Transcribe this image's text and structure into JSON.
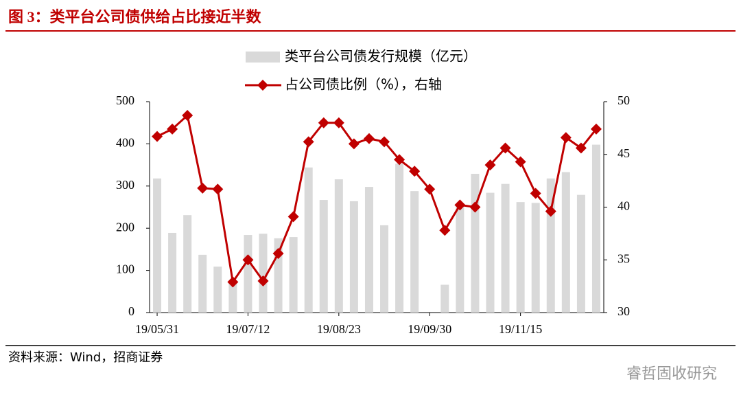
{
  "chart_data": {
    "type": "bar_line",
    "title": "图 3：类平台公司债供给占比接近半数",
    "source": "资料来源：Wind，招商证券",
    "watermark": "睿哲固收研究",
    "categories": [
      "19/05/31",
      null,
      null,
      null,
      null,
      null,
      "19/07/12",
      null,
      null,
      null,
      null,
      null,
      "19/08/23",
      null,
      null,
      null,
      null,
      null,
      "19/09/30",
      null,
      null,
      null,
      null,
      null,
      "19/11/15",
      null,
      null,
      null,
      null,
      null
    ],
    "series": [
      {
        "name": "类平台公司债发行规模（亿元）",
        "type": "bar",
        "color": "#d9d9d9",
        "values": [
          318,
          189,
          231,
          137,
          109,
          75,
          184,
          187,
          176,
          179,
          344,
          267,
          316,
          264,
          298,
          207,
          353,
          288,
          0,
          66,
          255,
          329,
          284,
          305,
          262,
          260,
          318,
          333,
          279,
          398
        ]
      },
      {
        "name": "占公司债比例（%），右轴",
        "type": "line",
        "axis": "y2",
        "color": "#c00000",
        "values": [
          46.7,
          47.4,
          48.7,
          41.8,
          41.7,
          32.9,
          35.0,
          33.0,
          35.6,
          39.1,
          46.2,
          48.0,
          48.0,
          46.0,
          46.5,
          46.2,
          44.5,
          43.4,
          41.7,
          37.8,
          40.2,
          40.0,
          44.0,
          45.6,
          44.3,
          41.3,
          39.6,
          46.6,
          45.6,
          47.4
        ]
      }
    ],
    "ylim": [
      0,
      500
    ],
    "yticks": [
      0,
      100,
      200,
      300,
      400,
      500
    ],
    "y2lim": [
      30,
      50
    ],
    "y2ticks": [
      30,
      35,
      40,
      45,
      50
    ],
    "legend": "top"
  }
}
